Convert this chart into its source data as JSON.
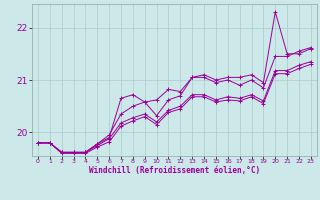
{
  "xlabel": "Windchill (Refroidissement éolien,°C)",
  "background_color": "#cce8e8",
  "line_color": "#990099",
  "grid_color": "#aacccc",
  "xlim": [
    -0.5,
    23.5
  ],
  "ylim": [
    19.55,
    22.45
  ],
  "yticks": [
    20,
    21,
    22
  ],
  "xticks": [
    0,
    1,
    2,
    3,
    4,
    5,
    6,
    7,
    8,
    9,
    10,
    11,
    12,
    13,
    14,
    15,
    16,
    17,
    18,
    19,
    20,
    21,
    22,
    23
  ],
  "lines": [
    {
      "x": [
        0,
        1,
        2,
        3,
        4,
        5,
        6,
        7,
        8,
        9,
        10,
        11,
        12,
        13,
        14,
        15,
        16,
        17,
        18,
        19,
        20,
        21,
        22,
        23
      ],
      "y": [
        19.8,
        19.8,
        19.62,
        19.62,
        19.62,
        19.78,
        19.95,
        20.35,
        20.5,
        20.58,
        20.62,
        20.82,
        20.78,
        21.05,
        21.1,
        21.0,
        21.05,
        21.05,
        21.1,
        20.95,
        22.3,
        21.5,
        21.5,
        21.6
      ]
    },
    {
      "x": [
        0,
        1,
        2,
        3,
        4,
        5,
        6,
        7,
        8,
        9,
        10,
        11,
        12,
        13,
        14,
        15,
        16,
        17,
        18,
        19,
        20,
        21,
        22,
        23
      ],
      "y": [
        19.8,
        19.8,
        19.62,
        19.62,
        19.62,
        19.78,
        19.9,
        20.65,
        20.72,
        20.58,
        20.32,
        20.62,
        20.7,
        21.05,
        21.05,
        20.95,
        21.0,
        20.9,
        21.0,
        20.85,
        21.45,
        21.45,
        21.55,
        21.62
      ]
    },
    {
      "x": [
        0,
        1,
        2,
        3,
        4,
        5,
        6,
        7,
        8,
        9,
        10,
        11,
        12,
        13,
        14,
        15,
        16,
        17,
        18,
        19,
        20,
        21,
        22,
        23
      ],
      "y": [
        19.8,
        19.8,
        19.62,
        19.62,
        19.62,
        19.75,
        19.88,
        20.18,
        20.28,
        20.35,
        20.2,
        20.42,
        20.5,
        20.72,
        20.72,
        20.62,
        20.68,
        20.65,
        20.72,
        20.6,
        21.18,
        21.18,
        21.28,
        21.35
      ]
    },
    {
      "x": [
        0,
        1,
        2,
        3,
        4,
        5,
        6,
        7,
        8,
        9,
        10,
        11,
        12,
        13,
        14,
        15,
        16,
        17,
        18,
        19,
        20,
        21,
        22,
        23
      ],
      "y": [
        19.8,
        19.8,
        19.6,
        19.6,
        19.6,
        19.72,
        19.82,
        20.12,
        20.22,
        20.3,
        20.15,
        20.38,
        20.45,
        20.68,
        20.68,
        20.58,
        20.62,
        20.6,
        20.68,
        20.55,
        21.12,
        21.12,
        21.22,
        21.3
      ]
    }
  ]
}
